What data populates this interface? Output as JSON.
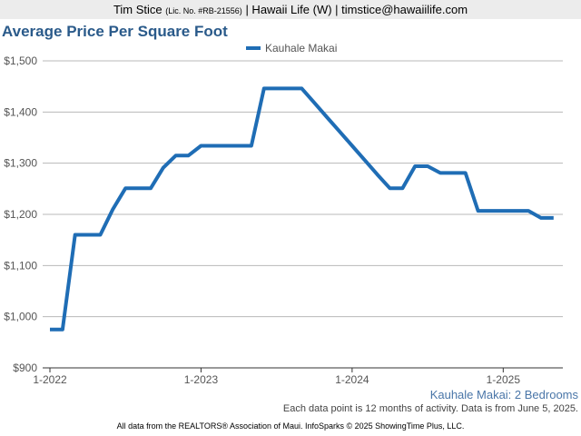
{
  "header": {
    "agent_name": "Tim Stice",
    "license": "(Lic. No. #RB-21556)",
    "rest": "| Hawaii Life (W) | timstice@hawaiilife.com"
  },
  "footer": {
    "subtitle": "Kauhale Makai: 2 Bedrooms",
    "note": "Each data point is 12 months of activity. Data is from June 5, 2025.",
    "credit": "All data from the REALTORS® Association of Maui. InfoSparks © 2025 ShowingTime Plus, LLC."
  },
  "chart_data": {
    "type": "line",
    "title": "Average Price Per Square Foot",
    "xlabel": "",
    "ylabel": "",
    "x": [
      "2022-01",
      "2022-02",
      "2022-03",
      "2022-04",
      "2022-05",
      "2022-06",
      "2022-07",
      "2022-08",
      "2022-09",
      "2022-10",
      "2022-11",
      "2022-12",
      "2023-01",
      "2023-02",
      "2023-03",
      "2023-04",
      "2023-05",
      "2023-06",
      "2023-07",
      "2023-08",
      "2023-09",
      "2023-10",
      "2023-11",
      "2023-12",
      "2024-01",
      "2024-02",
      "2024-03",
      "2024-04",
      "2024-05",
      "2024-06",
      "2024-07",
      "2024-08",
      "2024-09",
      "2024-10",
      "2024-11",
      "2024-12",
      "2025-01",
      "2025-02",
      "2025-03",
      "2025-04",
      "2025-05"
    ],
    "x_tick_labels": [
      "1-2022",
      "1-2023",
      "1-2024",
      "1-2025"
    ],
    "series": [
      {
        "name": "Kauhale Makai",
        "color": "#1f6db5",
        "values": [
          975,
          975,
          1160,
          1160,
          1160,
          1210,
          1251,
          1251,
          1251,
          1291,
          1315,
          1315,
          1334,
          1334,
          1334,
          1334,
          1334,
          1446,
          1446,
          1446,
          1446,
          1418,
          1390,
          1362,
          1334,
          1306,
          1278,
          1251,
          1251,
          1294,
          1294,
          1281,
          1281,
          1281,
          1207,
          1207,
          1207,
          1207,
          1207,
          1193,
          1193
        ]
      }
    ],
    "ylim": [
      900,
      1500
    ],
    "y_ticks": [
      900,
      1000,
      1100,
      1200,
      1300,
      1400,
      1500
    ],
    "y_tick_labels": [
      "$900",
      "$1,000",
      "$1,100",
      "$1,200",
      "$1,300",
      "$1,400",
      "$1,500"
    ],
    "grid": true,
    "legend": "top-center"
  }
}
